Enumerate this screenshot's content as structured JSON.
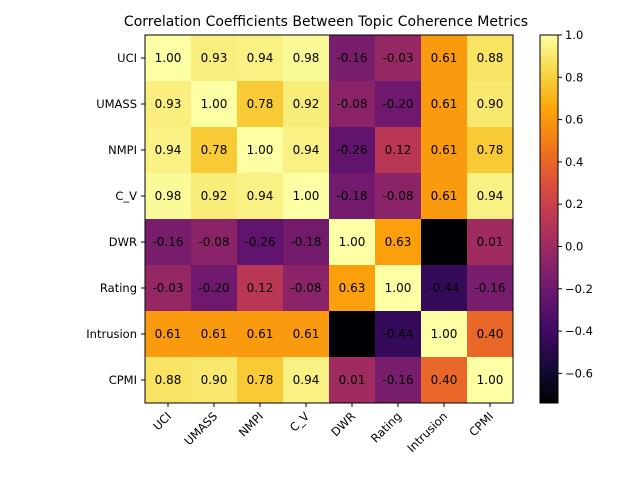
{
  "chart_data": {
    "type": "heatmap",
    "title": "Correlation Coefficients Between Topic Coherence Metrics",
    "row_labels": [
      "UCI",
      "UMASS",
      "NMPI",
      "C_V",
      "DWR",
      "Rating",
      "Intrusion",
      "CPMI"
    ],
    "col_labels": [
      "UCI",
      "UMASS",
      "NMPI",
      "C_V",
      "DWR",
      "Rating",
      "Intrusion",
      "CPMI"
    ],
    "values": [
      [
        1.0,
        0.93,
        0.94,
        0.98,
        -0.16,
        -0.03,
        0.61,
        0.88
      ],
      [
        0.93,
        1.0,
        0.78,
        0.92,
        -0.08,
        -0.2,
        0.61,
        0.9
      ],
      [
        0.94,
        0.78,
        1.0,
        0.94,
        -0.26,
        0.12,
        0.61,
        0.78
      ],
      [
        0.98,
        0.92,
        0.94,
        1.0,
        -0.18,
        -0.08,
        0.61,
        0.94
      ],
      [
        -0.16,
        -0.08,
        -0.26,
        -0.18,
        1.0,
        0.63,
        null,
        0.01
      ],
      [
        -0.03,
        -0.2,
        0.12,
        -0.08,
        0.63,
        1.0,
        -0.44,
        -0.16
      ],
      [
        0.61,
        0.61,
        0.61,
        0.61,
        null,
        -0.44,
        1.0,
        0.4
      ],
      [
        0.88,
        0.9,
        0.78,
        0.94,
        0.01,
        -0.16,
        0.4,
        1.0
      ]
    ],
    "colormap": "inferno",
    "color_range": [
      -0.74,
      1.0
    ],
    "colorbar_ticks": [
      "1.0",
      "0.8",
      "0.6",
      "0.4",
      "0.2",
      "0.0",
      "−0.2",
      "−0.4",
      "−0.6"
    ],
    "colorbar_tick_values": [
      1.0,
      0.8,
      0.6,
      0.4,
      0.2,
      0.0,
      -0.2,
      -0.4,
      -0.6
    ],
    "legend": "colorbar-right"
  }
}
